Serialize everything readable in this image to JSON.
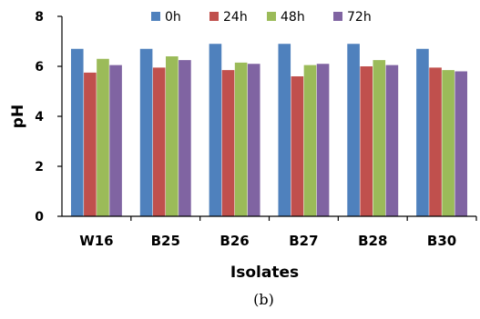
{
  "chart_data": {
    "type": "bar",
    "categories": [
      "W16",
      "B25",
      "B26",
      "B27",
      "B28",
      "B30"
    ],
    "series": [
      {
        "name": "0h",
        "color": "#4f81bd",
        "values": [
          6.7,
          6.7,
          6.9,
          6.9,
          6.9,
          6.7
        ]
      },
      {
        "name": "24h",
        "color": "#c0504d",
        "values": [
          5.75,
          5.95,
          5.85,
          5.6,
          6.0,
          5.95
        ]
      },
      {
        "name": "48h",
        "color": "#9bbb59",
        "values": [
          6.3,
          6.4,
          6.15,
          6.05,
          6.25,
          5.85
        ]
      },
      {
        "name": "72h",
        "color": "#8064a2",
        "values": [
          6.05,
          6.25,
          6.1,
          6.1,
          6.05,
          5.8
        ]
      }
    ],
    "xlabel": "Isolates",
    "ylabel": "pH",
    "ylim": [
      0,
      8
    ],
    "yticks": [
      "0",
      "2",
      "4",
      "6",
      "8"
    ],
    "grid": false,
    "legend_position": "top"
  },
  "caption": "(b)"
}
